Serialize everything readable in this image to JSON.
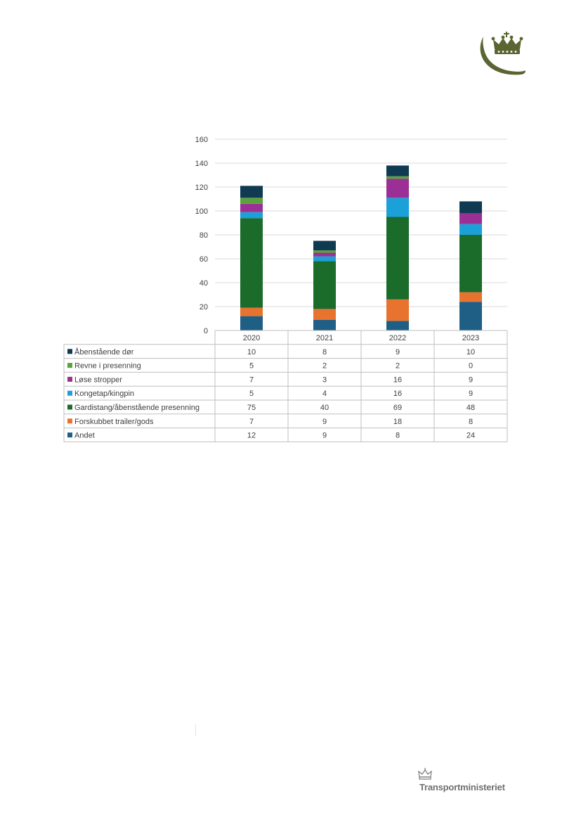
{
  "chart_data": {
    "type": "bar",
    "stacked": true,
    "categories": [
      "2020",
      "2021",
      "2022",
      "2023"
    ],
    "ylim": [
      0,
      160
    ],
    "yticks": [
      0,
      20,
      40,
      60,
      80,
      100,
      120,
      140,
      160
    ],
    "grid": true,
    "legend": "table-below",
    "series": [
      {
        "name": "Andet",
        "color": "#1f5f86",
        "values": [
          12,
          9,
          8,
          24
        ]
      },
      {
        "name": "Forskubbet trailer/gods",
        "color": "#e8732e",
        "values": [
          7,
          9,
          18,
          8
        ]
      },
      {
        "name": "Gardistang/åbenstående presenning",
        "color": "#1b6b2a",
        "values": [
          75,
          40,
          69,
          48
        ]
      },
      {
        "name": "Kongetap/kingpin",
        "color": "#1ba0d8",
        "values": [
          5,
          4,
          16,
          9
        ]
      },
      {
        "name": "Løse stropper",
        "color": "#9c2f96",
        "values": [
          7,
          3,
          16,
          9
        ]
      },
      {
        "name": "Revne i presenning",
        "color": "#5ca23c",
        "values": [
          5,
          2,
          2,
          0
        ]
      },
      {
        "name": "Åbenstående dør",
        "color": "#0f3a52",
        "values": [
          10,
          8,
          9,
          10
        ]
      }
    ]
  },
  "footer": {
    "brand": "Transportministeriet"
  },
  "logo": {
    "name": "crown-logo-icon",
    "color": "#5a6532"
  }
}
